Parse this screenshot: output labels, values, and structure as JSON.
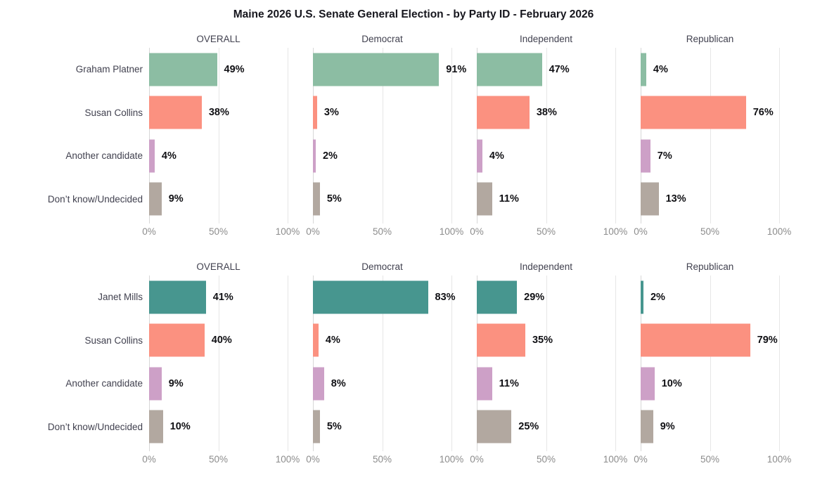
{
  "title": "Maine 2026 U.S. Senate General Election - by Party ID - February 2026",
  "palette": {
    "graham_platner": "#8cbda3",
    "janet_mills": "#47968f",
    "susan_collins": "#fb9180",
    "another_candidate": "#cda0c7",
    "dont_know_undecided": "#b2a8a0",
    "gridline": "#e6e6e6",
    "tick_label": "#8c8c8c",
    "row_label": "#41414f",
    "value_label": "#101014"
  },
  "chart_data": [
    {
      "type": "bar",
      "orientation": "horizontal",
      "unit": "%",
      "xlim": [
        0,
        100
      ],
      "x_ticks": [
        "0%",
        "50%",
        "100%"
      ],
      "grid": true,
      "panels": [
        "OVERALL",
        "Democrat",
        "Independent",
        "Republican"
      ],
      "categories": [
        "Graham Platner",
        "Susan Collins",
        "Another candidate",
        "Don’t know/Undecided"
      ],
      "category_colors": [
        "#8cbda3",
        "#fb9180",
        "#cda0c7",
        "#b2a8a0"
      ],
      "series": [
        {
          "name": "OVERALL",
          "values": [
            49,
            38,
            4,
            9
          ]
        },
        {
          "name": "Democrat",
          "values": [
            91,
            3,
            2,
            5
          ]
        },
        {
          "name": "Independent",
          "values": [
            47,
            38,
            4,
            11
          ]
        },
        {
          "name": "Republican",
          "values": [
            4,
            76,
            7,
            13
          ]
        }
      ]
    },
    {
      "type": "bar",
      "orientation": "horizontal",
      "unit": "%",
      "xlim": [
        0,
        100
      ],
      "x_ticks": [
        "0%",
        "50%",
        "100%"
      ],
      "grid": true,
      "panels": [
        "OVERALL",
        "Democrat",
        "Independent",
        "Republican"
      ],
      "categories": [
        "Janet Mills",
        "Susan Collins",
        "Another candidate",
        "Don’t know/Undecided"
      ],
      "category_colors": [
        "#47968f",
        "#fb9180",
        "#cda0c7",
        "#b2a8a0"
      ],
      "series": [
        {
          "name": "OVERALL",
          "values": [
            41,
            40,
            9,
            10
          ]
        },
        {
          "name": "Democrat",
          "values": [
            83,
            4,
            8,
            5
          ]
        },
        {
          "name": "Independent",
          "values": [
            29,
            35,
            11,
            25
          ]
        },
        {
          "name": "Republican",
          "values": [
            2,
            79,
            10,
            9
          ]
        }
      ]
    }
  ]
}
